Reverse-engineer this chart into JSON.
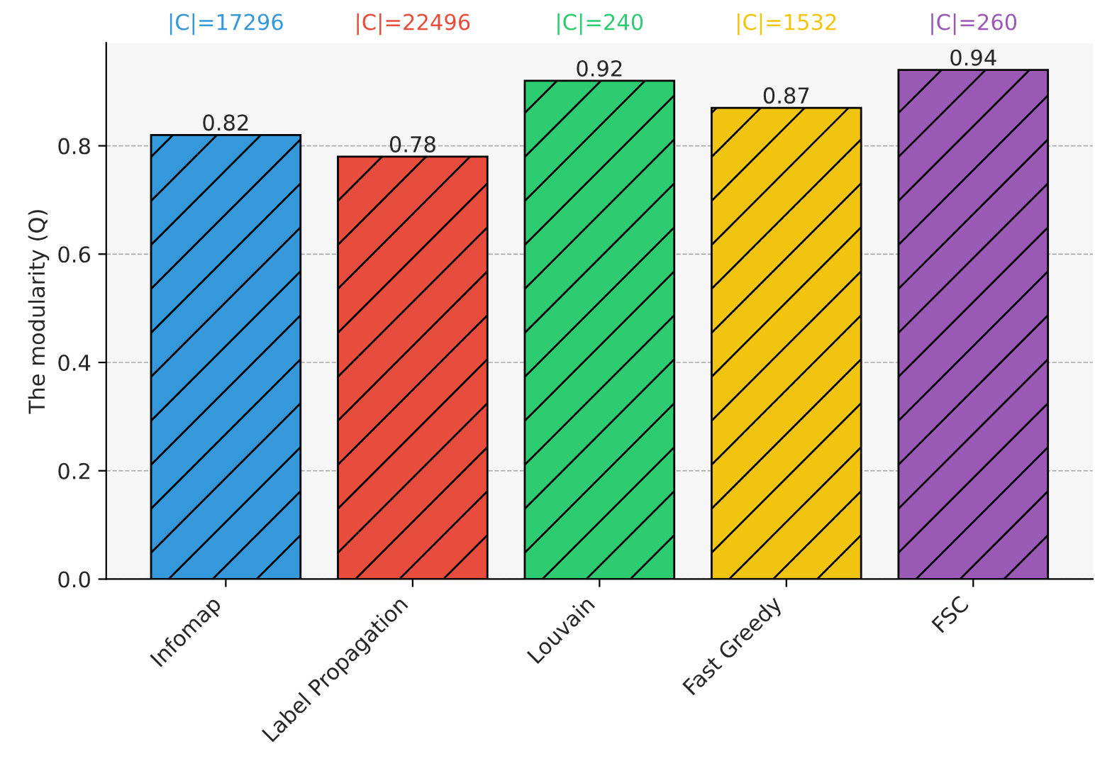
{
  "chart_data": {
    "type": "bar",
    "ylabel": "The modularity (Q)",
    "categories": [
      "Infomap",
      "Label Propagation",
      "Louvain",
      "Fast Greedy",
      "FSC"
    ],
    "values": [
      0.82,
      0.78,
      0.92,
      0.87,
      0.94
    ],
    "colors": [
      "#3498db",
      "#e74c3c",
      "#2ecc71",
      "#f1c40f",
      "#9b59b6"
    ],
    "annotations": [
      "|C|=17296",
      "|C|=22496",
      "|C|=240",
      "|C|=1532",
      "|C|=260"
    ],
    "ylim": [
      0,
      0.99
    ],
    "yticks": [
      {
        "value": 0,
        "label": "0.0"
      },
      0.2,
      0.4,
      0.6,
      0.8
    ],
    "data_labels": true,
    "grid": "y"
  }
}
